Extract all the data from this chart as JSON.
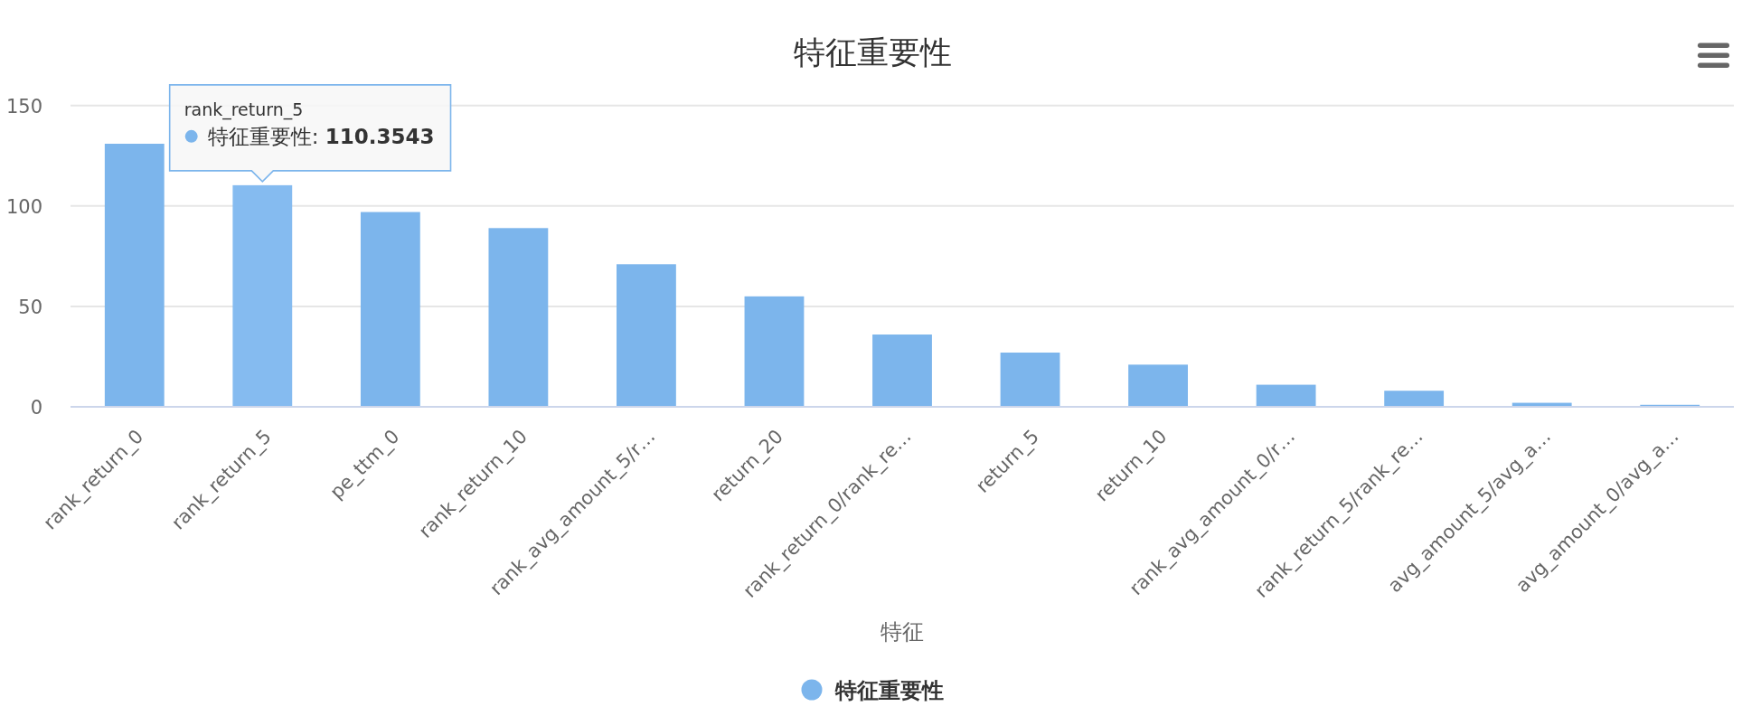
{
  "chart_data": {
    "type": "bar",
    "title": "特征重要性",
    "xlabel": "特征",
    "categories": [
      "rank_return_0",
      "rank_return_5",
      "pe_ttm_0",
      "rank_return_10",
      "rank_avg_amount_5/r…",
      "return_20",
      "rank_return_0/rank_re…",
      "return_5",
      "return_10",
      "rank_avg_amount_0/r…",
      "rank_return_5/rank_re…",
      "avg_amount_5/avg_a…",
      "avg_amount_0/avg_a…"
    ],
    "series": [
      {
        "name": "特征重要性",
        "color": "#7cb5ec",
        "colors": [
          "#7cb5ec",
          "#85bbf0",
          "#7cb5ec",
          "#7cb5ec",
          "#7cb5ec",
          "#7cb5ec",
          "#7cb5ec",
          "#7cb5ec",
          "#7cb5ec",
          "#7cb5ec",
          "#7cb5ec",
          "#7cb5ec",
          "#7cb5ec"
        ],
        "values": [
          131,
          110.3543,
          97,
          89,
          71,
          55,
          36,
          27,
          21,
          11,
          8,
          2,
          1
        ]
      }
    ],
    "ylim": [
      0,
      150
    ],
    "yticks": [
      0,
      50,
      100,
      150
    ],
    "grid": "y",
    "legend": "bottom",
    "annotations": [
      {
        "text": "rank_return_5\n特征重要性: **110.3543**",
        "x": "rank_return_5",
        "y": 110.3543
      }
    ]
  }
}
